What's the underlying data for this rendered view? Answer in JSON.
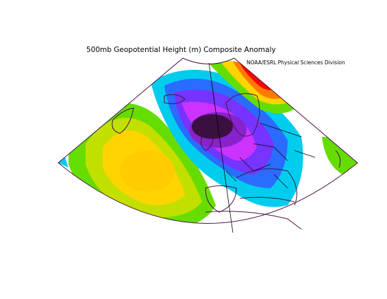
{
  "map": {
    "title": "500mb Geopotential Height (m) Composite Anomaly",
    "credit": "NOAA/ESRL Physical Sciences Division",
    "projection": "conic",
    "region": "North Atlantic / Europe"
  },
  "colors": {
    "background": "#ffffff",
    "coastline": "#4b1040",
    "boundary": "#000000",
    "shading": [
      "#ff0000",
      "#ff7a00",
      "#ffd400",
      "#c2e000",
      "#66dd00",
      "#00ccee",
      "#2a6cff",
      "#7733ff",
      "#cc33ff",
      "#8822cc",
      "#3a1040"
    ]
  },
  "features": {
    "positive_anomaly_center": "mid-Atlantic west of Iberia",
    "negative_anomaly_center": "North Sea / Scandinavia",
    "strong_positive_area": "Barents Sea / northern Scandinavia"
  }
}
